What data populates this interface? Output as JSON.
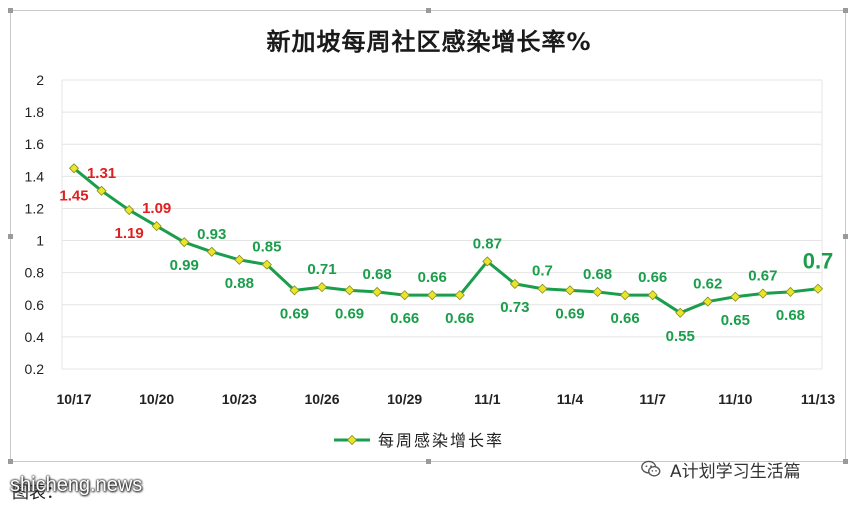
{
  "chart_data": {
    "type": "line",
    "title": "新加坡每周社区感染增长率%",
    "xlabel": "",
    "ylabel": "",
    "ylim": [
      0.2,
      2
    ],
    "yticks": [
      "0.2",
      "0.4",
      "0.6",
      "0.8",
      "1",
      "1.2",
      "1.4",
      "1.6",
      "1.8",
      "2"
    ],
    "xtick_labels": [
      {
        "index": 0,
        "label": "10/17"
      },
      {
        "index": 3,
        "label": "10/20"
      },
      {
        "index": 6,
        "label": "10/23"
      },
      {
        "index": 9,
        "label": "10/26"
      },
      {
        "index": 12,
        "label": "10/29"
      },
      {
        "index": 15,
        "label": "11/1"
      },
      {
        "index": 18,
        "label": "11/4"
      },
      {
        "index": 21,
        "label": "11/7"
      },
      {
        "index": 24,
        "label": "11/10"
      },
      {
        "index": 27,
        "label": "11/13"
      }
    ],
    "grid": true,
    "legend": "bottom",
    "series": [
      {
        "name": "每周感染增长率",
        "color": "#1a9e4b",
        "marker_color": "#e8e62a",
        "values": [
          1.45,
          1.31,
          1.19,
          1.09,
          0.99,
          0.93,
          0.88,
          0.85,
          0.69,
          0.71,
          0.69,
          0.68,
          0.66,
          0.66,
          0.66,
          0.87,
          0.73,
          0.7,
          0.69,
          0.68,
          0.66,
          0.66,
          0.55,
          0.62,
          0.65,
          0.67,
          0.68,
          0.7
        ],
        "labels": [
          {
            "index": 0,
            "text": "1.45",
            "pos": "below-left",
            "color": "#e02020"
          },
          {
            "index": 1,
            "text": "1.31",
            "pos": "above",
            "color": "#e02020"
          },
          {
            "index": 2,
            "text": "1.19",
            "pos": "below",
            "color": "#e02020"
          },
          {
            "index": 3,
            "text": "1.09",
            "pos": "above",
            "color": "#e02020"
          },
          {
            "index": 4,
            "text": "0.99",
            "pos": "below",
            "color": "#1a9e4b"
          },
          {
            "index": 5,
            "text": "0.93",
            "pos": "above",
            "color": "#1a9e4b"
          },
          {
            "index": 6,
            "text": "0.88",
            "pos": "below",
            "color": "#1a9e4b"
          },
          {
            "index": 7,
            "text": "0.85",
            "pos": "above",
            "color": "#1a9e4b"
          },
          {
            "index": 8,
            "text": "0.69",
            "pos": "below",
            "color": "#1a9e4b"
          },
          {
            "index": 9,
            "text": "0.71",
            "pos": "above",
            "color": "#1a9e4b"
          },
          {
            "index": 10,
            "text": "0.69",
            "pos": "below",
            "color": "#1a9e4b"
          },
          {
            "index": 11,
            "text": "0.68",
            "pos": "above",
            "color": "#1a9e4b"
          },
          {
            "index": 12,
            "text": "0.66",
            "pos": "below",
            "color": "#1a9e4b"
          },
          {
            "index": 13,
            "text": "0.66",
            "pos": "above",
            "color": "#1a9e4b"
          },
          {
            "index": 14,
            "text": "0.66",
            "pos": "below",
            "color": "#1a9e4b"
          },
          {
            "index": 15,
            "text": "0.87",
            "pos": "above",
            "color": "#1a9e4b"
          },
          {
            "index": 16,
            "text": "0.73",
            "pos": "below",
            "color": "#1a9e4b"
          },
          {
            "index": 17,
            "text": "0.7",
            "pos": "above",
            "color": "#1a9e4b"
          },
          {
            "index": 18,
            "text": "0.69",
            "pos": "below",
            "color": "#1a9e4b"
          },
          {
            "index": 19,
            "text": "0.68",
            "pos": "above",
            "color": "#1a9e4b"
          },
          {
            "index": 20,
            "text": "0.66",
            "pos": "below",
            "color": "#1a9e4b"
          },
          {
            "index": 21,
            "text": "0.66",
            "pos": "above",
            "color": "#1a9e4b"
          },
          {
            "index": 22,
            "text": "0.55",
            "pos": "below",
            "color": "#1a9e4b"
          },
          {
            "index": 23,
            "text": "0.62",
            "pos": "above",
            "color": "#1a9e4b"
          },
          {
            "index": 24,
            "text": "0.65",
            "pos": "below",
            "color": "#1a9e4b"
          },
          {
            "index": 25,
            "text": "0.67",
            "pos": "above",
            "color": "#1a9e4b"
          },
          {
            "index": 26,
            "text": "0.68",
            "pos": "below",
            "color": "#1a9e4b"
          },
          {
            "index": 27,
            "text": "0.7",
            "pos": "above-large",
            "color": "#1a9e4b"
          }
        ]
      }
    ]
  },
  "footer": {
    "source_label": "图表：",
    "watermark": "shicheng.news",
    "account": "A计划学习生活篇",
    "account_icon": "wechat-icon"
  },
  "colors": {
    "grid": "#e4e4e4",
    "axis_text": "#222222",
    "label_red": "#e02020",
    "label_green": "#1a9e4b"
  }
}
